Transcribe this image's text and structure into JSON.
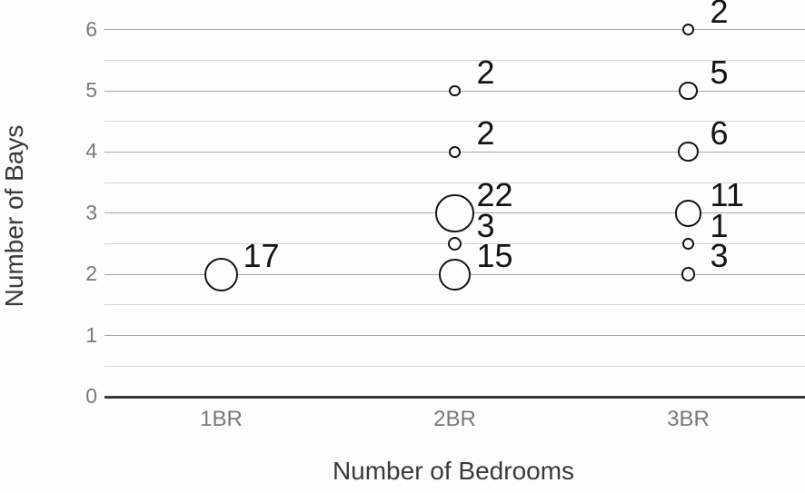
{
  "chart_data": {
    "type": "scatter",
    "subtype": "bubble",
    "title": "",
    "xlabel": "Number of Bedrooms",
    "ylabel": "Number of Bays",
    "categories": [
      "1BR",
      "2BR",
      "3BR"
    ],
    "yticks": [
      0,
      1,
      2,
      3,
      4,
      5,
      6
    ],
    "ylim": [
      0,
      6
    ],
    "grid": {
      "major": true,
      "minor_step": 0.5
    },
    "legend_position": "none",
    "series": [
      {
        "name": "1BR",
        "points": [
          {
            "y": 2,
            "count": 17
          }
        ]
      },
      {
        "name": "2BR",
        "points": [
          {
            "y": 2,
            "count": 15
          },
          {
            "y": 2.5,
            "count": 3
          },
          {
            "y": 3,
            "count": 22
          },
          {
            "y": 4,
            "count": 2
          },
          {
            "y": 5,
            "count": 2
          }
        ]
      },
      {
        "name": "3BR",
        "points": [
          {
            "y": 2,
            "count": 3
          },
          {
            "y": 2.5,
            "count": 1
          },
          {
            "y": 3,
            "count": 11
          },
          {
            "y": 4,
            "count": 6
          },
          {
            "y": 5,
            "count": 5
          },
          {
            "y": 6,
            "count": 2
          }
        ]
      }
    ],
    "colors": {
      "background": "#fdfdf9",
      "major_gridline": "#a9a7a4",
      "minor_gridline": "#d8d6d3",
      "axis_line": "#3a3a3a",
      "bubble_stroke": "#141414",
      "bubble_fill": "#fdfdf9",
      "data_label": "#141414",
      "tick_label": "#7b7977",
      "axis_title": "#3c3a38"
    }
  }
}
